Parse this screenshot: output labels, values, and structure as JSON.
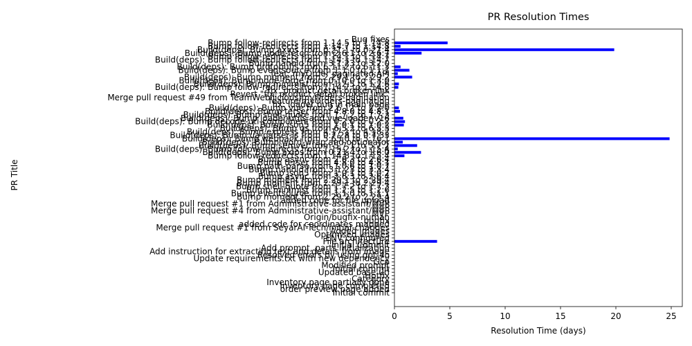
{
  "chart_data": {
    "type": "bar",
    "orientation": "horizontal",
    "title": "PR Resolution Times",
    "xlabel": "Resolution Time (days)",
    "ylabel": "PR Title",
    "xlim": [
      0,
      26
    ],
    "x_ticks": [
      0,
      5,
      10,
      15,
      20,
      25
    ],
    "grid": false,
    "bar_color": "#0000ff",
    "categories": [
      "Bug fixes",
      "Bump follow-redirects from 1.14.5 to 1.14.8",
      "Bump follow-redirects from 1.14.7 to 1.14.8",
      "Build(deps): Bump axios from 0.21.1 to 0.21.4",
      "Build(deps): Bump node-fetch from 2.6.1 to 2.6.7",
      "Bump follow-redirects from 1.14.1 to 1.14.7",
      "Build(deps): Bump follow-redirects from 1.14.1 to 1.14.7",
      "Bump nanoid from 3.1.23 to 3.2.0",
      "Build(deps): Bump protobufjs from 6.11.2 to 6.11.3",
      "Build(deps): Bump eventsource from 1.1.0 to 1.1.1",
      "feat: myOrder paginated API",
      "Build(deps): Bump moment from 2.29.1 to 2.29.2",
      "Build(deps): Bump node-forge from 0.10.0 to 1.3.0",
      "Build(deps): Bump minimist from 1.2.5 to 1.2.6",
      "Build(deps): Bump follow-redirects from 1.14.7 to 1.14.8",
      "fix: product detail broken link",
      "Revert \"fix: product detail broken link\"",
      "Merge pull request #49 from TeamWebilicious/myOrders-pagination",
      "feature/myOrders-pagination",
      "fix: loader bug in main page",
      "Build(deps): Bump vue from 2.6.12 to 2.7.0",
      "Build(deps): Bump terser from 4.8.0 to 4.8.1",
      "Build(deps): Bump shell-quote from 1.7.2 to 1.7.3",
      "Build(deps): Bump loader-utils and vue-loader-v16",
      "Build(deps): Bump decode-uri-component from 0.2.0 to 0.2.2",
      "Build(deps): Bump json5 from 1.0.1 to 1.0.2",
      "Build(deps): Bump qs from 6.5.2 to 6.5.3",
      "Build(deps): Bump express from 4.17.1 to 4.18.2",
      "Build(deps): Bump ua-parser-js from 0.7.28 to 0.7.33",
      "Build(deps): Bump webpack from 5.65.0 to 5.76.1",
      "Build(deps): Bump word-wrap and optionator",
      "Build(deps): Bump semver from 5.7.1 to 5.7.2",
      "Build(deps): Bump follow-redirects from 1.15.2 to 1.15.4",
      "Build(deps): Bump axios from 0.21.4 to 1.6.0",
      "Bump follow-redirects from 1.14.8 to 1.15.4",
      "Bump async from 2.6.3 to 2.6.4",
      "Bump terser from 4.8.0 to 4.8.1",
      "Bump path-parse from 1.0.6 to 1.0.7",
      "Bump nanoid from 3.1.23 to 3.3.4",
      "Bump json5 from 1.0.1 to 1.0.2",
      "Bump async from 2.6.3 to 2.6.4",
      "Bump moment from 2.29.1 to 2.29.4",
      "Bump moment from 2.29.1 to 2.29.4",
      "Bump shell-quote from 1.7.2 to 1.7.3",
      "Bump minimist from 1.2.5 to 1.2.6",
      "Bump eventsource from 1.1.0 to 1.1.1",
      "Bump moment from 2.29.2 to 2.29.4",
      "added code for file upload",
      "Merge pull request #1 from Administrative-assistant/MVP",
      "MVP",
      "Merge pull request #4 from Administrative-assistant/MVP",
      "MVP",
      "Origin/bugfix-numan",
      "bugfix",
      "added code for coordinates mapped",
      "Merge pull request #1 from SeyarAI-Tech/initial-changes",
      "Added images",
      "Optimised images",
      "ENV configured",
      "File architecture",
      "Initial Commit",
      "Add prompt, parts initialization",
      "Add instruction for extracting text and details from image",
      "Resolved errors by using gpt-4o",
      "Update requirements.txt with new dependency",
      "Gcp",
      "Modified prompt",
      "Initial commit",
      "Updated base url",
      "Hotfix",
      "Category",
      "Inventory page partially done",
      "Inventory page completed",
      "order preview page added",
      "Initial commit"
    ],
    "values": [
      0.0,
      4.8,
      0.55,
      19.85,
      2.45,
      0.0,
      0.0,
      0.0,
      0.55,
      1.35,
      0.3,
      1.6,
      0.0,
      0.4,
      0.35,
      0.0,
      0.0,
      0.0,
      0.0,
      0.0,
      0.4,
      0.5,
      0.0,
      0.8,
      0.95,
      0.85,
      0.0,
      0.0,
      0.0,
      24.85,
      0.75,
      2.05,
      0.3,
      2.4,
      0.9,
      0.0,
      0.0,
      0.0,
      0.0,
      0.0,
      0.0,
      0.0,
      0.0,
      0.0,
      0.0,
      0.0,
      0.0,
      0.0,
      0.0,
      0.0,
      0.0,
      0.0,
      0.0,
      0.0,
      0.0,
      0.0,
      0.0,
      0.0,
      0.0,
      3.85,
      0.0,
      0.0,
      0.0,
      0.0,
      0.0,
      0.0,
      0.0,
      0.0,
      0.0,
      0.0,
      0.0,
      0.0,
      0.0,
      0.0,
      0.0
    ]
  }
}
